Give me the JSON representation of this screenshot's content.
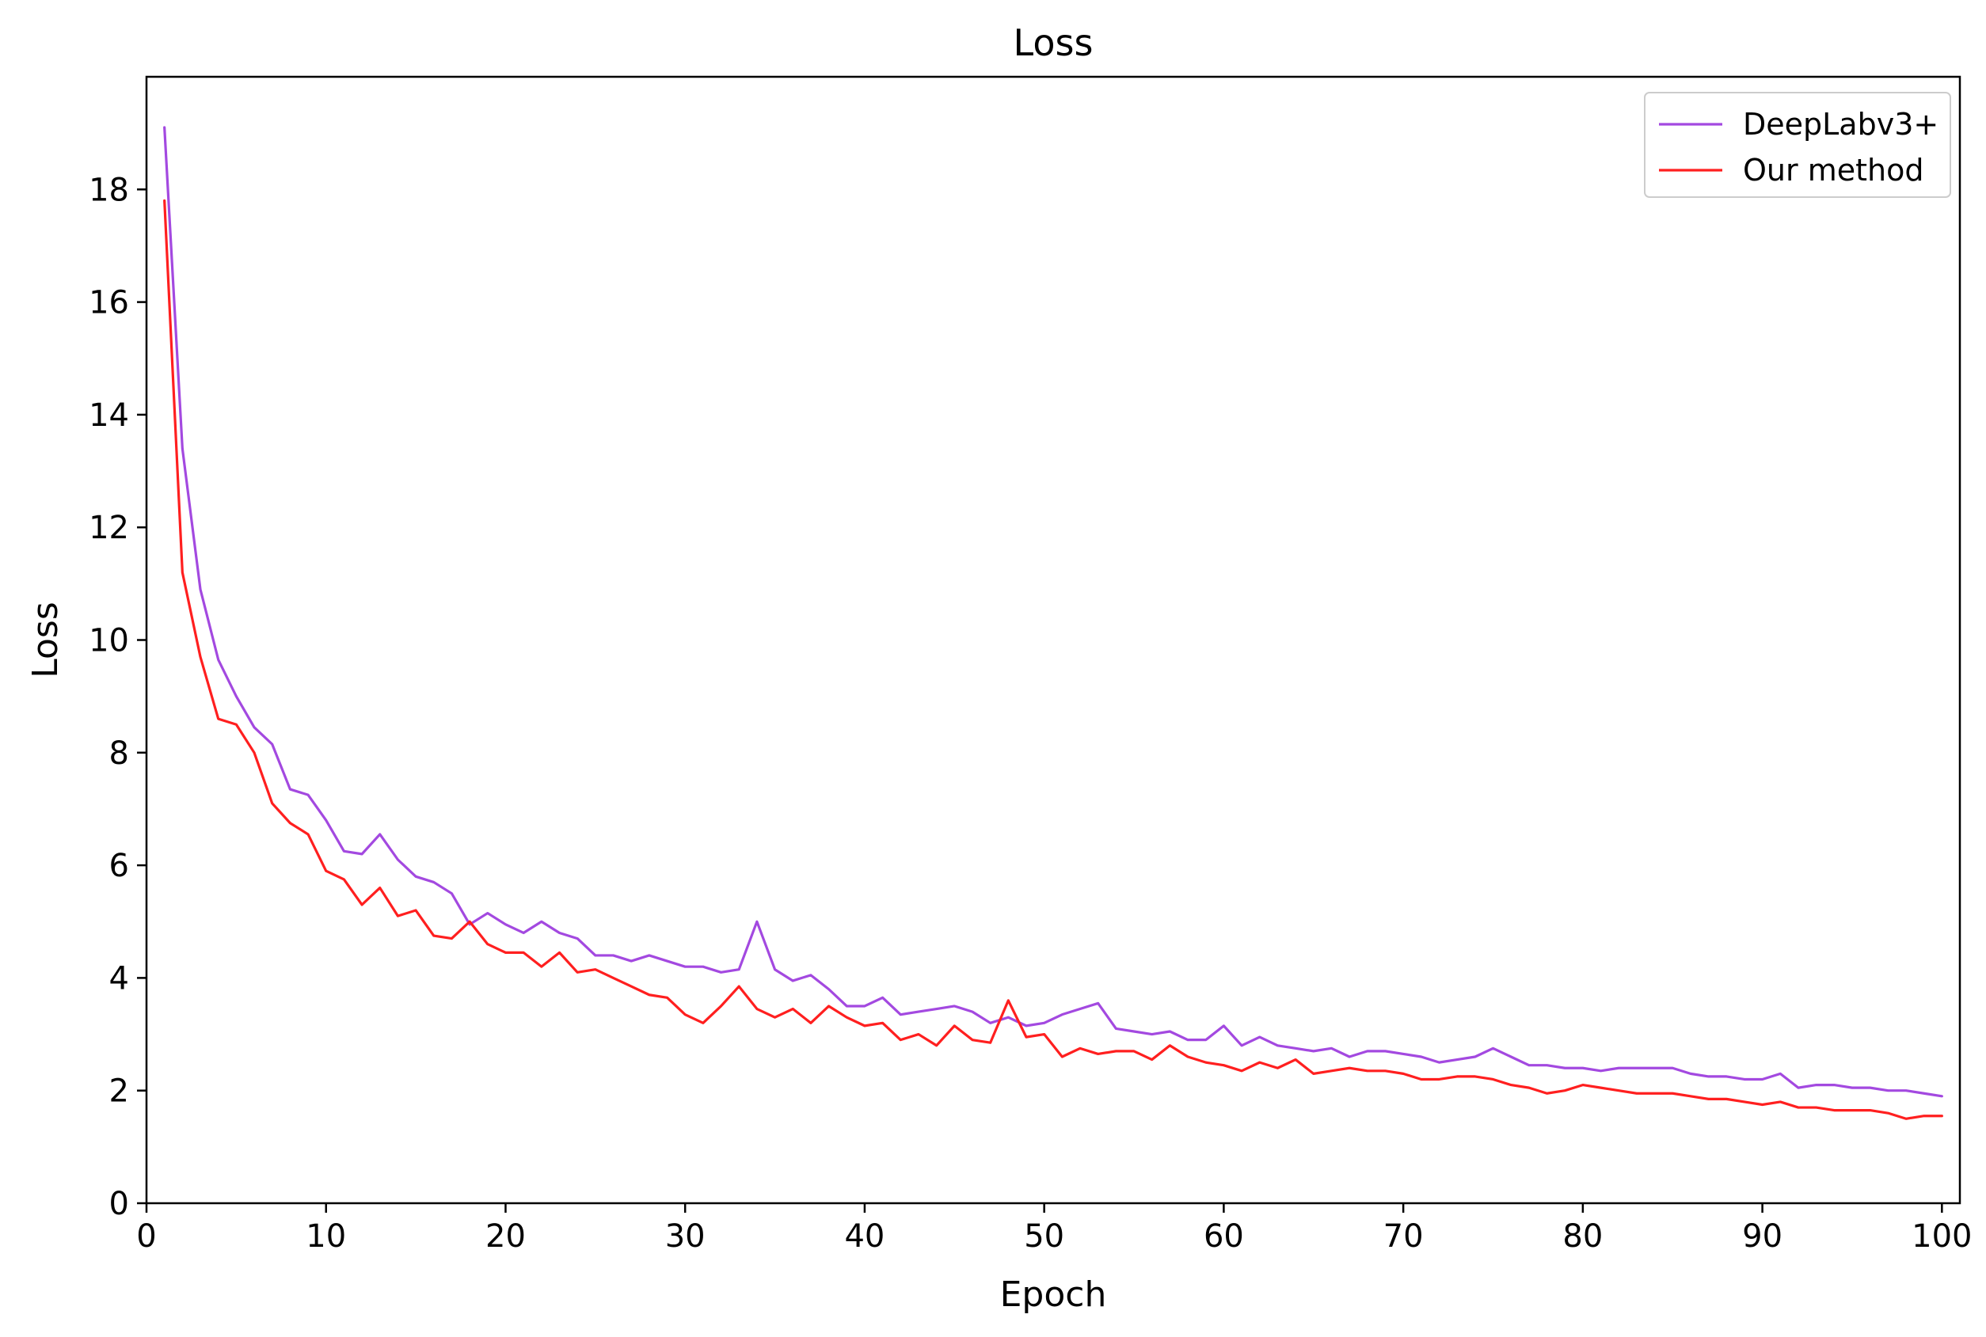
{
  "chart_data": {
    "type": "line",
    "title": "Loss",
    "xlabel": "Epoch",
    "ylabel": "Loss",
    "xlim": [
      0,
      101
    ],
    "ylim": [
      0,
      20
    ],
    "xticks": [
      0,
      10,
      20,
      30,
      40,
      50,
      60,
      70,
      80,
      90,
      100
    ],
    "yticks": [
      0,
      2,
      4,
      6,
      8,
      10,
      12,
      14,
      16,
      18
    ],
    "grid": false,
    "legend_position": "top-right",
    "x": [
      1,
      2,
      3,
      4,
      5,
      6,
      7,
      8,
      9,
      10,
      11,
      12,
      13,
      14,
      15,
      16,
      17,
      18,
      19,
      20,
      21,
      22,
      23,
      24,
      25,
      26,
      27,
      28,
      29,
      30,
      31,
      32,
      33,
      34,
      35,
      36,
      37,
      38,
      39,
      40,
      41,
      42,
      43,
      44,
      45,
      46,
      47,
      48,
      49,
      50,
      51,
      52,
      53,
      54,
      55,
      56,
      57,
      58,
      59,
      60,
      61,
      62,
      63,
      64,
      65,
      66,
      67,
      68,
      69,
      70,
      71,
      72,
      73,
      74,
      75,
      76,
      77,
      78,
      79,
      80,
      81,
      82,
      83,
      84,
      85,
      86,
      87,
      88,
      89,
      90,
      91,
      92,
      93,
      94,
      95,
      96,
      97,
      98,
      99,
      100
    ],
    "series": [
      {
        "name": "DeepLabv3+",
        "color": "#a349e0",
        "values": [
          19.1,
          13.4,
          10.9,
          9.65,
          9.0,
          8.45,
          8.15,
          7.35,
          7.25,
          6.8,
          6.25,
          6.2,
          6.55,
          6.1,
          5.8,
          5.7,
          5.5,
          4.95,
          5.15,
          4.95,
          4.8,
          5.0,
          4.8,
          4.7,
          4.4,
          4.4,
          4.3,
          4.4,
          4.3,
          4.2,
          4.2,
          4.1,
          4.15,
          5.0,
          4.15,
          3.95,
          4.05,
          3.8,
          3.5,
          3.5,
          3.65,
          3.35,
          3.4,
          3.45,
          3.5,
          3.4,
          3.2,
          3.3,
          3.15,
          3.2,
          3.35,
          3.45,
          3.55,
          3.1,
          3.05,
          3.0,
          3.05,
          2.9,
          2.9,
          3.15,
          2.8,
          2.95,
          2.8,
          2.75,
          2.7,
          2.75,
          2.6,
          2.7,
          2.7,
          2.65,
          2.6,
          2.5,
          2.55,
          2.6,
          2.75,
          2.6,
          2.45,
          2.45,
          2.4,
          2.4,
          2.35,
          2.4,
          2.4,
          2.4,
          2.4,
          2.3,
          2.25,
          2.25,
          2.2,
          2.2,
          2.3,
          2.05,
          2.1,
          2.1,
          2.05,
          2.05,
          2.0,
          2.0,
          1.95,
          1.9
        ]
      },
      {
        "name": "Our method",
        "color": "#ff1f1f",
        "values": [
          17.8,
          11.2,
          9.7,
          8.6,
          8.5,
          8.0,
          7.1,
          6.75,
          6.55,
          5.9,
          5.75,
          5.3,
          5.6,
          5.1,
          5.2,
          4.75,
          4.7,
          5.0,
          4.6,
          4.45,
          4.45,
          4.2,
          4.45,
          4.1,
          4.15,
          4.0,
          3.85,
          3.7,
          3.65,
          3.35,
          3.2,
          3.5,
          3.85,
          3.45,
          3.3,
          3.45,
          3.2,
          3.5,
          3.3,
          3.15,
          3.2,
          2.9,
          3.0,
          2.8,
          3.15,
          2.9,
          2.85,
          3.6,
          2.95,
          3.0,
          2.6,
          2.75,
          2.65,
          2.7,
          2.7,
          2.55,
          2.8,
          2.6,
          2.5,
          2.45,
          2.35,
          2.5,
          2.4,
          2.55,
          2.3,
          2.35,
          2.4,
          2.35,
          2.35,
          2.3,
          2.2,
          2.2,
          2.25,
          2.25,
          2.2,
          2.1,
          2.05,
          1.95,
          2.0,
          2.1,
          2.05,
          2.0,
          1.95,
          1.95,
          1.95,
          1.9,
          1.85,
          1.85,
          1.8,
          1.75,
          1.8,
          1.7,
          1.7,
          1.65,
          1.65,
          1.65,
          1.6,
          1.5,
          1.55,
          1.55
        ]
      }
    ]
  }
}
